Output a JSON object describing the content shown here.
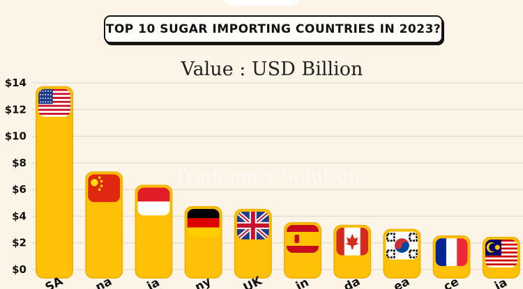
{
  "header": {
    "title": "TOP 10 SUGAR IMPORTING COUNTRIES IN 2023?",
    "subtitle": "Value : USD Billion"
  },
  "watermark": "Tradeimex Solutions",
  "colors": {
    "background": "#fbf4e7",
    "bar": "#ffc107",
    "bar_outline": "#f2b400",
    "grid": "#dcd6cb"
  },
  "chart_data": {
    "type": "bar",
    "categories": [
      "USA",
      "China",
      "Indonesia",
      "Germany",
      "UK",
      "Spain",
      "Canada",
      "Korea",
      "France",
      "Malaysia"
    ],
    "category_labels_visible": [
      "SA",
      "na",
      "ia",
      "ny",
      "UK",
      "in",
      "da",
      "ea",
      "ce",
      "ia"
    ],
    "values": [
      13.7,
      7.3,
      6.3,
      4.7,
      4.5,
      3.5,
      3.3,
      3.0,
      2.5,
      2.4
    ],
    "flags": [
      "us-flag-icon",
      "cn-flag-icon",
      "id-flag-icon",
      "de-flag-icon",
      "gb-flag-icon",
      "es-flag-icon",
      "ca-flag-icon",
      "kr-flag-icon",
      "fr-flag-icon",
      "my-flag-icon"
    ],
    "yticks": [
      "$0",
      "$2",
      "$4",
      "$6",
      "$8",
      "$10",
      "$12",
      "$14"
    ],
    "ylim": [
      0,
      14
    ],
    "grid": true
  }
}
